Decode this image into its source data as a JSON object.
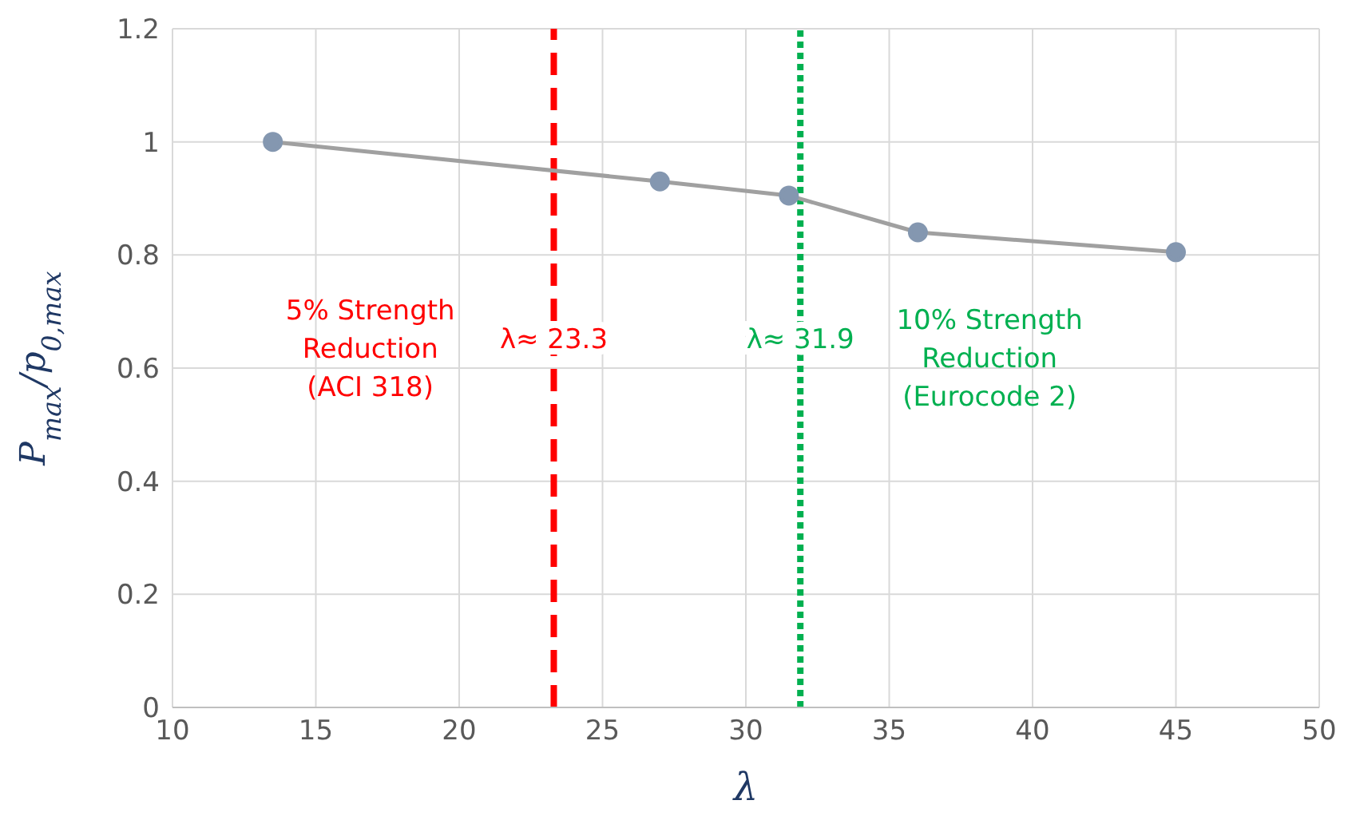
{
  "chart_data": {
    "type": "line",
    "xlabel": "λ",
    "ylabel": "P$_{max}$/p$_{0,max}$",
    "x": [
      13.5,
      27,
      31.5,
      36,
      45
    ],
    "series": [
      {
        "color": "#a0a0a0",
        "values": [
          1.0,
          0.93,
          0.905,
          0.84,
          0.805
        ]
      }
    ],
    "marker": "circle",
    "line_style": "solid",
    "grid": true,
    "xlim": [
      10,
      50
    ],
    "xticks": [
      10,
      15,
      20,
      25,
      30,
      35,
      40,
      45,
      50
    ],
    "ylim": [
      0,
      1.2
    ],
    "yticks": [
      0,
      0.2,
      0.4,
      0.6,
      0.8,
      1,
      1.2
    ],
    "ref_lines": [
      {
        "axis": "x",
        "value": 23.3,
        "color": "#ff0000",
        "line_style": "dashed",
        "label": "λ≈ 23.3"
      },
      {
        "axis": "x",
        "value": 31.9,
        "color": "#00b050",
        "line_style": "dotted",
        "label": "λ≈ 31.9"
      }
    ],
    "annotations": [
      "5% Strength Reduction (ACI 318)",
      "10% Strength Reduction (Eurocode 2)"
    ]
  }
}
